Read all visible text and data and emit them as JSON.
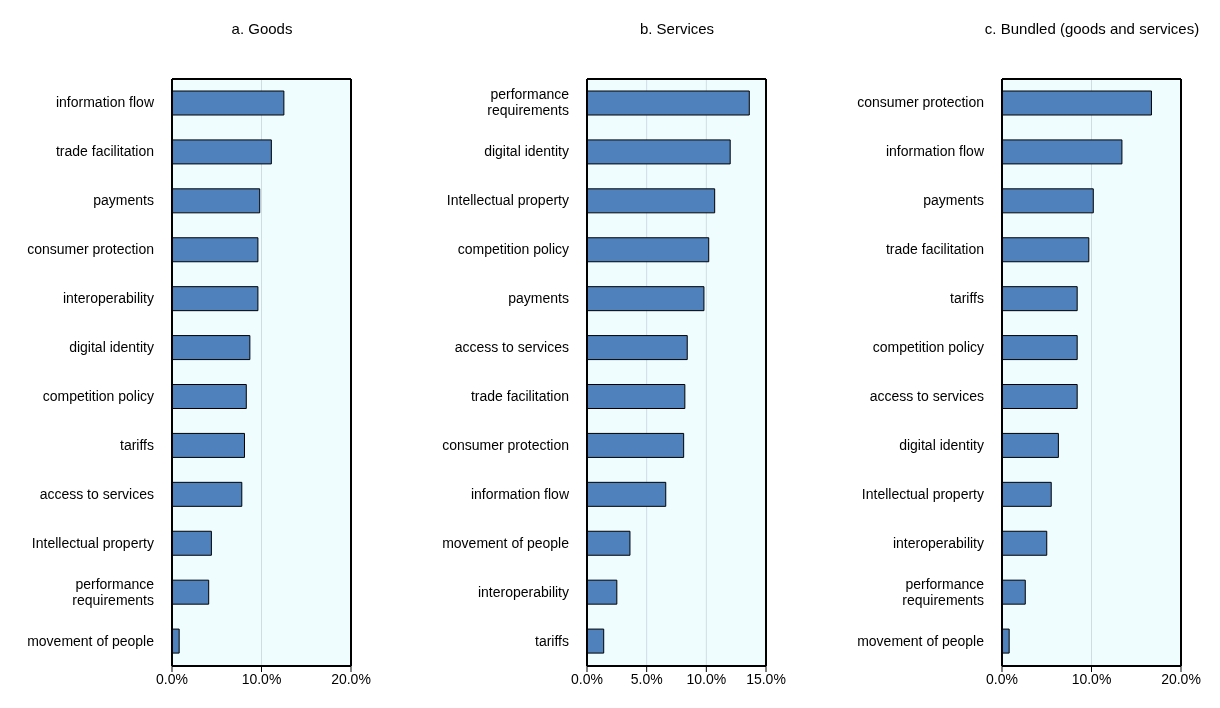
{
  "chart_data": [
    {
      "type": "bar",
      "orientation": "horizontal",
      "title": "a. Goods",
      "categories": [
        "information flow",
        "trade facilitation",
        "payments",
        "consumer protection",
        "interoperability",
        "digital identity",
        "competition policy",
        "tariffs",
        "access to services",
        "Intellectual property",
        "performance requirements",
        "movement of people"
      ],
      "values": [
        12.5,
        11.1,
        9.8,
        9.6,
        9.6,
        8.7,
        8.3,
        8.1,
        7.8,
        4.4,
        4.1,
        0.8
      ],
      "color": "#4f81bd",
      "xlim": [
        0,
        20
      ],
      "xticks": [
        {
          "value": 0,
          "label": "0.0%"
        },
        {
          "value": 10,
          "label": "10.0%"
        },
        {
          "value": 20,
          "label": "20.0%"
        }
      ],
      "grid": "x"
    },
    {
      "type": "bar",
      "orientation": "horizontal",
      "title": "b. Services",
      "categories": [
        "performance requirements",
        "digital identity",
        "Intellectual property",
        "competition policy",
        "payments",
        "access to services",
        "trade facilitation",
        "consumer protection",
        "information flow",
        "movement of people",
        "interoperability",
        "tariffs"
      ],
      "values": [
        13.6,
        12.0,
        10.7,
        10.2,
        9.8,
        8.4,
        8.2,
        8.1,
        6.6,
        3.6,
        2.5,
        1.4
      ],
      "color": "#4f81bd",
      "xlim": [
        0,
        15
      ],
      "xticks": [
        {
          "value": 0,
          "label": "0.0%"
        },
        {
          "value": 5,
          "label": "5.0%"
        },
        {
          "value": 10,
          "label": "10.0%"
        },
        {
          "value": 15,
          "label": "15.0%"
        }
      ],
      "grid": "x"
    },
    {
      "type": "bar",
      "orientation": "horizontal",
      "title": "c. Bundled (goods and services)",
      "categories": [
        "consumer protection",
        "information flow",
        "payments",
        "trade facilitation",
        "tariffs",
        "competition policy",
        "access to services",
        "digital identity",
        "Intellectual property",
        "interoperability",
        "performance requirements",
        "movement of people"
      ],
      "values": [
        16.7,
        13.4,
        10.2,
        9.7,
        8.4,
        8.4,
        8.4,
        6.3,
        5.5,
        5.0,
        2.6,
        0.8
      ],
      "color": "#4f81bd",
      "xlim": [
        0,
        20
      ],
      "xticks": [
        {
          "value": 0,
          "label": "0.0%"
        },
        {
          "value": 10,
          "label": "10.0%"
        },
        {
          "value": 20,
          "label": "20.0%"
        }
      ],
      "grid": "x"
    }
  ]
}
